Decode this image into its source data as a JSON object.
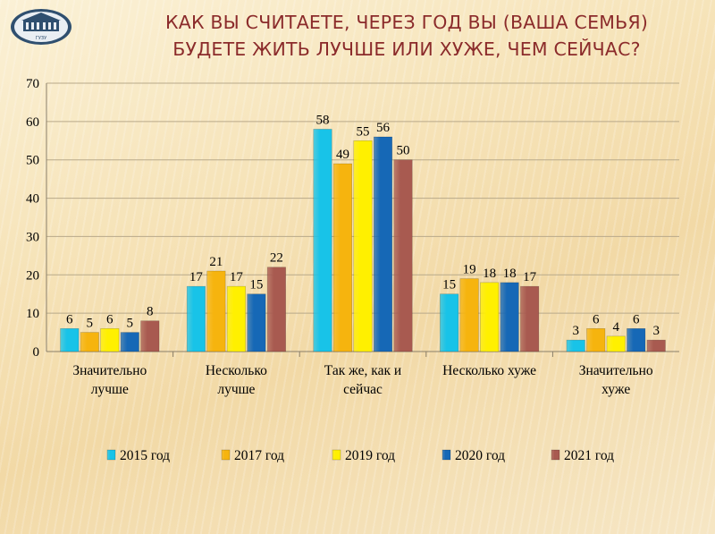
{
  "header": {
    "title_line1": "КАК ВЫ СЧИТАЕТЕ, ЧЕРЕЗ ГОД ВЫ (ВАША СЕМЬЯ)",
    "title_line2": "БУДЕТЕ ЖИТЬ ЛУЧШЕ ИЛИ ХУЖЕ, ЧЕМ СЕЙЧАС?",
    "logo_text": "ГУЗУ"
  },
  "colors": {
    "title": "#8b2b2b",
    "s2015": "#18c3e8",
    "s2017": "#f6b40e",
    "s2019": "#fff000",
    "s2020": "#1668b6",
    "s2021": "#a85a50"
  },
  "chart_data": {
    "type": "bar",
    "title": "",
    "xlabel": "",
    "ylabel": "",
    "ylim": [
      0,
      70
    ],
    "yticks": [
      0,
      10,
      20,
      30,
      40,
      50,
      60,
      70
    ],
    "grid": true,
    "legend_position": "bottom",
    "categories": [
      [
        "Значительно",
        "лучше"
      ],
      [
        "Несколько",
        "лучше"
      ],
      [
        "Так же, как и",
        "сейчас"
      ],
      [
        "Несколько хуже"
      ],
      [
        "Значительно",
        "хуже"
      ]
    ],
    "series": [
      {
        "name": "2015 год",
        "values": [
          6,
          17,
          58,
          15,
          3
        ]
      },
      {
        "name": "2017 год",
        "values": [
          5,
          21,
          49,
          19,
          6
        ]
      },
      {
        "name": "2019 год",
        "values": [
          6,
          17,
          55,
          18,
          4
        ]
      },
      {
        "name": "2020 год",
        "values": [
          5,
          15,
          56,
          18,
          6
        ]
      },
      {
        "name": "2021 год",
        "values": [
          8,
          22,
          50,
          17,
          3
        ]
      }
    ]
  }
}
